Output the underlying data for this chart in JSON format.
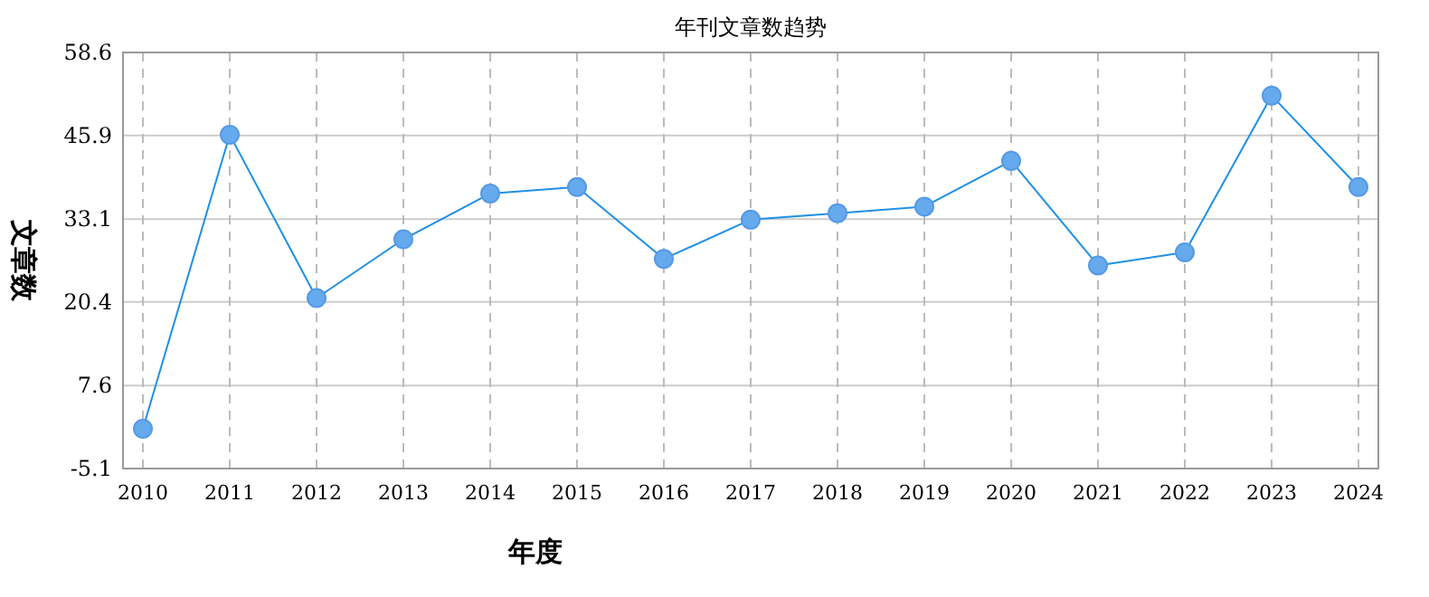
{
  "chart_data": {
    "type": "line",
    "title": "年刊文章数趋势",
    "xlabel": "年度",
    "ylabel": "文章数",
    "categories": [
      "2010",
      "2011",
      "2012",
      "2013",
      "2014",
      "2015",
      "2016",
      "2017",
      "2018",
      "2019",
      "2020",
      "2021",
      "2022",
      "2023",
      "2024"
    ],
    "series": [
      {
        "color": "#1e90e6",
        "values": [
          1,
          46,
          21,
          30,
          37,
          38,
          27,
          33,
          34,
          35,
          42,
          26,
          28,
          52,
          38
        ]
      }
    ],
    "ylim": [
      -5.1,
      58.6
    ],
    "yticks": [
      -5.1,
      7.6,
      20.4,
      33.1,
      45.9,
      58.6
    ],
    "grid": true,
    "marker": "circle",
    "line_style": "solid"
  }
}
